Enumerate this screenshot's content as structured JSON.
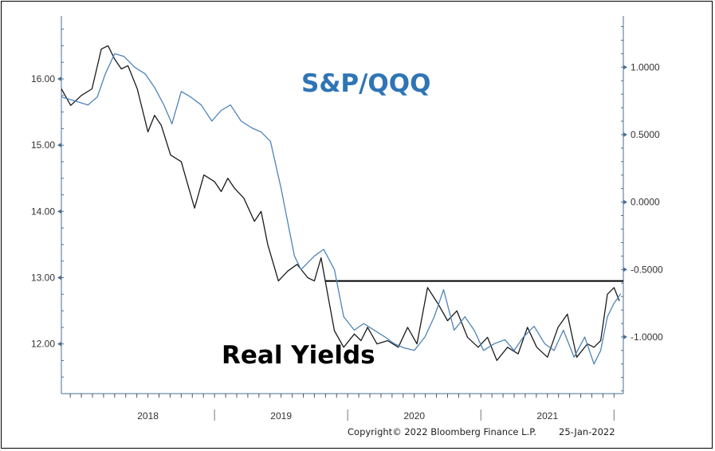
{
  "chart_data": {
    "type": "line",
    "annotations": {
      "top": "S&P/QQQ",
      "bottom": "Real Yields"
    },
    "copyright": "Copyright© 2022 Bloomberg Finance L.P.",
    "date_stamp": "25-Jan-2022",
    "x_labels": [
      "2018",
      "2019",
      "2020",
      "2021"
    ],
    "x_range": [
      2017.85,
      2022.07
    ],
    "y_left": {
      "ticks": [
        "12.00",
        "13.00",
        "14.00",
        "15.00",
        "16.00"
      ],
      "range": [
        11.25,
        16.95
      ]
    },
    "y_right": {
      "ticks": [
        "-1.0000",
        "-0.5000",
        "0.0000",
        "0.5000",
        "1.0000"
      ],
      "range": [
        -1.42,
        1.38
      ]
    },
    "reference_line": {
      "y_left": 12.95,
      "x_start": 2019.83,
      "x_end": 2022.07
    },
    "series": [
      {
        "axis": "left",
        "color": "#1a1a1a",
        "x": [
          2017.85,
          2017.92,
          2018.0,
          2018.08,
          2018.15,
          2018.2,
          2018.25,
          2018.3,
          2018.35,
          2018.42,
          2018.5,
          2018.55,
          2018.6,
          2018.67,
          2018.75,
          2018.8,
          2018.85,
          2018.92,
          2019.0,
          2019.05,
          2019.1,
          2019.15,
          2019.22,
          2019.3,
          2019.35,
          2019.4,
          2019.48,
          2019.55,
          2019.62,
          2019.7,
          2019.75,
          2019.8,
          2019.85,
          2019.9,
          2019.97,
          2020.05,
          2020.1,
          2020.15,
          2020.22,
          2020.3,
          2020.38,
          2020.45,
          2020.52,
          2020.6,
          2020.68,
          2020.75,
          2020.82,
          2020.9,
          2020.98,
          2021.05,
          2021.12,
          2021.2,
          2021.28,
          2021.35,
          2021.42,
          2021.5,
          2021.58,
          2021.65,
          2021.72,
          2021.8,
          2021.85,
          2021.9,
          2021.95,
          2022.0,
          2022.04
        ],
        "values": [
          15.85,
          15.6,
          15.75,
          15.85,
          16.45,
          16.5,
          16.3,
          16.15,
          16.2,
          15.85,
          15.2,
          15.45,
          15.3,
          14.85,
          14.75,
          14.4,
          14.05,
          14.55,
          14.45,
          14.3,
          14.5,
          14.35,
          14.2,
          13.85,
          14.0,
          13.5,
          12.95,
          13.1,
          13.2,
          13.0,
          12.95,
          13.3,
          12.75,
          12.2,
          11.95,
          12.15,
          12.05,
          12.25,
          12.0,
          12.05,
          11.95,
          12.25,
          12.0,
          12.85,
          12.6,
          12.35,
          12.5,
          12.1,
          11.95,
          12.1,
          11.75,
          11.95,
          11.85,
          12.25,
          11.95,
          11.8,
          12.25,
          12.45,
          11.8,
          12.0,
          11.95,
          12.05,
          12.75,
          12.85,
          12.65
        ]
      },
      {
        "axis": "right",
        "color": "#4e84b8",
        "x": [
          2017.85,
          2017.95,
          2018.05,
          2018.12,
          2018.18,
          2018.25,
          2018.32,
          2018.4,
          2018.48,
          2018.55,
          2018.62,
          2018.68,
          2018.75,
          2018.82,
          2018.9,
          2018.98,
          2019.05,
          2019.12,
          2019.2,
          2019.28,
          2019.35,
          2019.42,
          2019.5,
          2019.55,
          2019.6,
          2019.65,
          2019.7,
          2019.75,
          2019.82,
          2019.9,
          2019.97,
          2020.05,
          2020.12,
          2020.2,
          2020.28,
          2020.35,
          2020.42,
          2020.5,
          2020.58,
          2020.65,
          2020.72,
          2020.8,
          2020.88,
          2020.95,
          2021.02,
          2021.1,
          2021.18,
          2021.25,
          2021.32,
          2021.4,
          2021.48,
          2021.55,
          2021.62,
          2021.7,
          2021.78,
          2021.85,
          2021.9,
          2021.95,
          2022.0,
          2022.05
        ],
        "values": [
          0.78,
          0.75,
          0.72,
          0.78,
          0.95,
          1.1,
          1.08,
          1.0,
          0.95,
          0.85,
          0.72,
          0.58,
          0.82,
          0.78,
          0.72,
          0.6,
          0.68,
          0.72,
          0.6,
          0.55,
          0.52,
          0.45,
          0.1,
          -0.15,
          -0.4,
          -0.5,
          -0.45,
          -0.4,
          -0.35,
          -0.5,
          -0.85,
          -0.95,
          -0.9,
          -0.95,
          -1.0,
          -1.05,
          -1.08,
          -1.1,
          -1.0,
          -0.85,
          -0.65,
          -0.95,
          -0.85,
          -0.95,
          -1.1,
          -1.05,
          -1.02,
          -1.1,
          -1.0,
          -0.92,
          -1.05,
          -1.1,
          -0.95,
          -1.15,
          -1.0,
          -1.2,
          -1.1,
          -0.85,
          -0.75,
          -0.68
        ]
      }
    ]
  }
}
